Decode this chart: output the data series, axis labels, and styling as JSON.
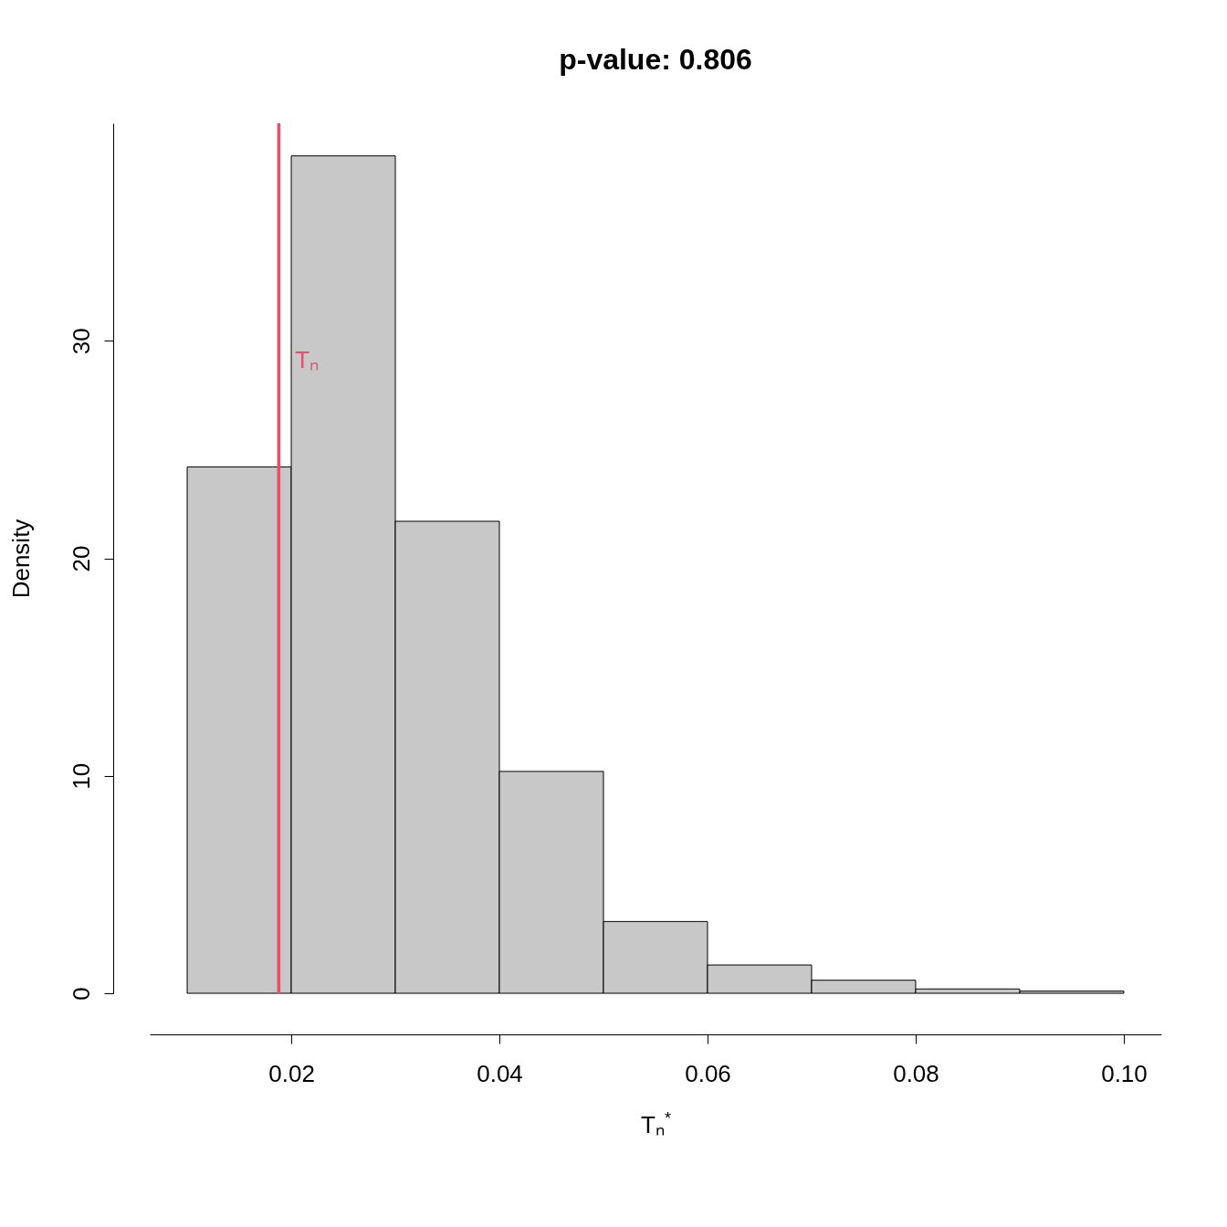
{
  "chart_data": {
    "type": "histogram",
    "title": "p-value: 0.806",
    "xlabel": "Tₙ$^{*}$",
    "ylabel": "Density",
    "bins": [
      0.01,
      0.02,
      0.03,
      0.04,
      0.05,
      0.06,
      0.07,
      0.08,
      0.09,
      0.1
    ],
    "values": [
      24.2,
      38.5,
      21.7,
      10.2,
      3.3,
      1.3,
      0.6,
      0.2,
      0.1
    ],
    "color": "#c8c8c8",
    "xlim": [
      0.0064,
      0.1036
    ],
    "ylim": [
      0,
      40
    ],
    "xticks": [
      0.02,
      0.04,
      0.06,
      0.08,
      {
        "value": 0.1,
        "label": "0.10"
      }
    ],
    "yticks": [
      0,
      10,
      20,
      30
    ],
    "ref_lines": [
      {
        "axis": "x",
        "value": 0.0188,
        "label": "Tₙ",
        "color": "#df536b"
      }
    ],
    "grid": false
  }
}
